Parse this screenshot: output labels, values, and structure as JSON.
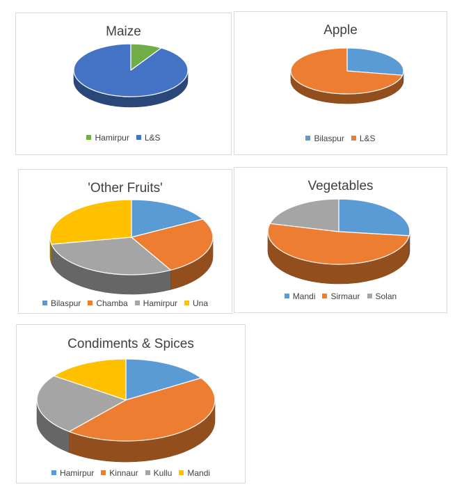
{
  "chart_data": [
    {
      "type": "pie",
      "title": "Maize",
      "categories": [
        "Hamirpur",
        "L&S"
      ],
      "values": [
        9,
        91
      ],
      "colors": [
        "#70ad47",
        "#4472c4"
      ],
      "legend_position": "bottom",
      "style": "3d"
    },
    {
      "type": "pie",
      "title": "Apple",
      "categories": [
        "Bilaspur",
        "L&S"
      ],
      "values": [
        28,
        72
      ],
      "colors": [
        "#5b9bd5",
        "#ed7d31"
      ],
      "legend_position": "bottom",
      "style": "3d"
    },
    {
      "type": "pie",
      "title": "'Other  Fruits'",
      "categories": [
        "Bilaspur",
        "Chamba",
        "Hamirpur",
        "Una"
      ],
      "values": [
        17,
        25,
        30,
        28
      ],
      "colors": [
        "#5b9bd5",
        "#ed7d31",
        "#a5a5a5",
        "#ffc000"
      ],
      "legend_position": "bottom",
      "style": "3d"
    },
    {
      "type": "pie",
      "title": "Vegetables",
      "categories": [
        "Mandi",
        "Sirmaur",
        "Solan"
      ],
      "values": [
        27,
        52,
        21
      ],
      "colors": [
        "#5b9bd5",
        "#ed7d31",
        "#a5a5a5"
      ],
      "legend_position": "bottom",
      "style": "3d"
    },
    {
      "type": "pie",
      "title": "Condiments & Spices",
      "categories": [
        "Hamirpur",
        "Kinnaur",
        "Kullu",
        "Mandi"
      ],
      "values": [
        16,
        45,
        24,
        15
      ],
      "colors": [
        "#5b9bd5",
        "#ed7d31",
        "#a5a5a5",
        "#ffc000"
      ],
      "legend_position": "bottom",
      "style": "3d"
    }
  ]
}
